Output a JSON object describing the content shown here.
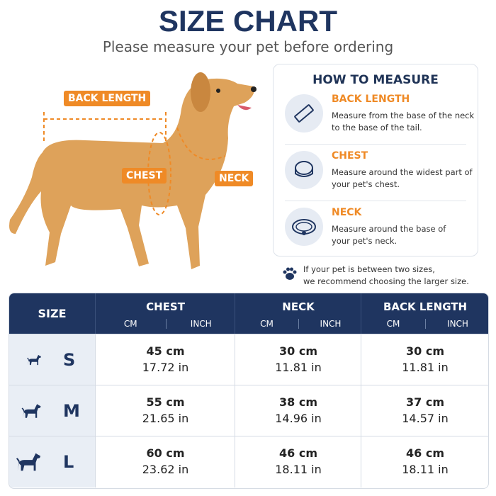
{
  "header": {
    "title": "SIZE CHART",
    "subtitle": "Please measure your pet before ordering"
  },
  "diagram": {
    "labels": [
      "BACK LENGTH",
      "CHEST",
      "NECK"
    ]
  },
  "how_to_measure": {
    "title": "HOW TO MEASURE",
    "items": [
      {
        "title": "BACK LENGTH",
        "lines": [
          "Measure from the base of the neck",
          "to the base of the tail."
        ]
      },
      {
        "title": "CHEST",
        "lines": [
          "Measure around the widest part of",
          "your pet's chest."
        ]
      },
      {
        "title": "NECK",
        "lines": [
          "Measure around the base of",
          "your pet's neck."
        ]
      }
    ]
  },
  "note": {
    "lines": [
      "If your pet is between two sizes,",
      "we recommend choosing the larger size."
    ]
  },
  "table": {
    "size_header": "SIZE",
    "groups": [
      {
        "name": "CHEST",
        "units": [
          "CM",
          "INCH"
        ]
      },
      {
        "name": "NECK",
        "units": [
          "CM",
          "INCH"
        ]
      },
      {
        "name": "BACK LENGTH",
        "units": [
          "CM",
          "INCH"
        ]
      }
    ],
    "rows": [
      {
        "size": "S",
        "cells": [
          [
            "45 cm",
            "17.72 in"
          ],
          [
            "30 cm",
            "11.81 in"
          ],
          [
            "30 cm",
            "11.81 in"
          ]
        ]
      },
      {
        "size": "M",
        "cells": [
          [
            "55 cm",
            "21.65 in"
          ],
          [
            "38 cm",
            "14.96 in"
          ],
          [
            "37 cm",
            "14.57 in"
          ]
        ]
      },
      {
        "size": "L",
        "cells": [
          [
            "60 cm",
            "23.62 in"
          ],
          [
            "46 cm",
            "18.11 in"
          ],
          [
            "46 cm",
            "18.11 in"
          ]
        ]
      }
    ]
  }
}
